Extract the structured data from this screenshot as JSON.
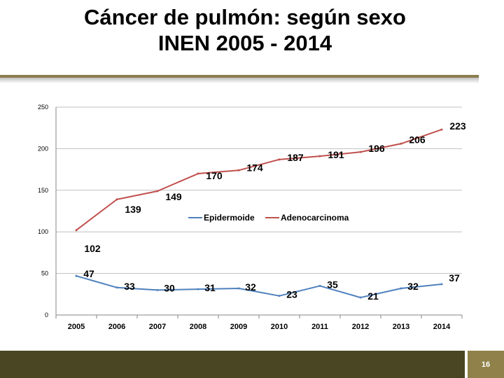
{
  "slide": {
    "title_line1": "Cáncer de pulmón: según sexo",
    "title_line2": "INEN 2005 - 2014",
    "page_number": "16"
  },
  "colors": {
    "epidermoide": "#4f81bd",
    "adenocarcinoma": "#c0504d",
    "gridline": "#bfbfbf",
    "footer_dark": "#4a4624",
    "footer_accent": "#8f8149"
  },
  "chart_data": {
    "type": "line",
    "title": "",
    "xlabel": "",
    "ylabel": "",
    "ylim": [
      0,
      250
    ],
    "yticks": [
      0,
      50,
      100,
      150,
      200,
      250
    ],
    "grid": true,
    "legend_position": "center",
    "categories": [
      "2005",
      "2006",
      "2007",
      "2008",
      "2009",
      "2010",
      "2011",
      "2012",
      "2013",
      "2014"
    ],
    "series": [
      {
        "name": "Epidermoide",
        "values": [
          47,
          33,
          30,
          31,
          32,
          23,
          35,
          21,
          32,
          37
        ]
      },
      {
        "name": "Adenocarcinoma",
        "values": [
          102,
          139,
          149,
          170,
          174,
          187,
          191,
          196,
          206,
          223
        ]
      }
    ]
  }
}
